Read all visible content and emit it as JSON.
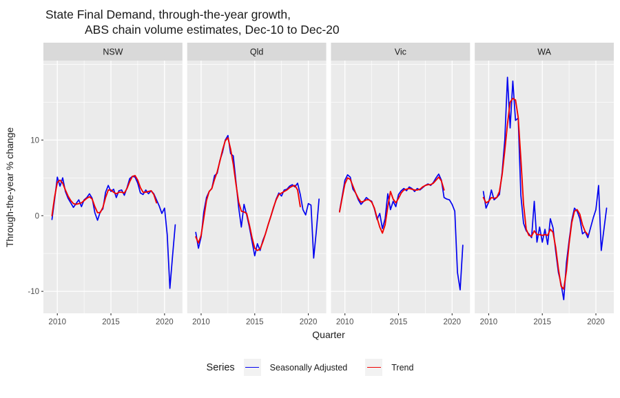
{
  "title": {
    "line1": "State Final Demand, through-the-year growth,",
    "line2": "ABS chain volume estimates, Dec-10 to Dec-20"
  },
  "axes": {
    "x_label": "Quarter",
    "y_label": "Through-the-year % change",
    "x_tick_labels": [
      "2010",
      "2015",
      "2020"
    ],
    "y_tick_labels": [
      "10",
      "0",
      "-10"
    ]
  },
  "legend": {
    "title": "Series",
    "entries": [
      {
        "label": "Seasonally Adjusted",
        "color": "#0000F0"
      },
      {
        "label": "Trend",
        "color": "#F00000"
      }
    ]
  },
  "theme": {
    "panel_bg": "#EBEBEB",
    "strip_bg": "#D9D9D9",
    "grid_color": "#FFFFFF",
    "tick_text_color": "#4d4d4d",
    "tick_mark_color": "#333333",
    "strip_text_color": "#1a1a1a",
    "sa_color": "#0000F0",
    "trend_color": "#F00000"
  },
  "chart_data": {
    "type": "line",
    "title": "State Final Demand, through-the-year growth, ABS chain volume estimates, Dec-10 to Dec-20",
    "xlabel": "Quarter",
    "ylabel": "Through-the-year % change",
    "legend_position": "bottom",
    "grid": true,
    "x_start_year": 2009.5,
    "x_step_years": 0.25,
    "x_ticks": [
      2010,
      2015,
      2020
    ],
    "x_minor": [
      2012.5,
      2017.5
    ],
    "y_ticks": [
      -10,
      0,
      10
    ],
    "y_minor": [
      -5,
      5,
      15,
      20
    ],
    "xlim": [
      2008.7,
      2021.67
    ],
    "ylim": [
      -12.9,
      20.5
    ],
    "series_names": [
      "Seasonally Adjusted",
      "Trend"
    ],
    "facets": [
      {
        "label": "NSW",
        "seasonally_adjusted": [
          -0.5,
          2.2,
          5.1,
          3.9,
          5.0,
          3.2,
          2.3,
          1.7,
          1.1,
          1.6,
          2.1,
          1.2,
          2.1,
          2.4,
          2.9,
          2.3,
          0.4,
          -0.6,
          0.5,
          0.9,
          3.1,
          4.0,
          3.2,
          3.5,
          2.4,
          3.3,
          3.4,
          2.7,
          3.7,
          4.9,
          5.2,
          5.1,
          4.3,
          3.0,
          2.8,
          3.4,
          2.9,
          3.3,
          2.9,
          2.1,
          1.3,
          0.3,
          1.0,
          -2.5,
          -9.6,
          -5.3,
          -1.2
        ],
        "trend": [
          0.0,
          2.5,
          4.4,
          4.7,
          4.3,
          3.4,
          2.6,
          2.0,
          1.6,
          1.5,
          1.6,
          1.7,
          2.0,
          2.3,
          2.5,
          2.2,
          1.2,
          0.4,
          0.4,
          1.1,
          2.4,
          3.4,
          3.4,
          3.1,
          2.9,
          3.1,
          3.1,
          3.0,
          3.6,
          4.5,
          5.2,
          5.3,
          4.7,
          3.7,
          3.1,
          3.1,
          3.2,
          3.3,
          2.8,
          1.7
        ]
      },
      {
        "label": "Qld",
        "seasonally_adjusted": [
          -2.2,
          -4.3,
          -2.8,
          0.5,
          2.4,
          3.2,
          3.6,
          5.3,
          5.6,
          7.3,
          8.4,
          10.0,
          10.6,
          8.2,
          7.9,
          4.5,
          1.1,
          -1.5,
          1.5,
          0.1,
          -1.5,
          -3.4,
          -5.3,
          -3.7,
          -4.6,
          -3.3,
          -2.4,
          -1.2,
          -0.1,
          1.0,
          2.2,
          3.0,
          2.6,
          3.4,
          3.5,
          3.9,
          4.1,
          3.8,
          4.3,
          2.8,
          0.8,
          0.1,
          1.6,
          1.4,
          -5.6,
          -2.0,
          2.2
        ],
        "trend": [
          -2.8,
          -3.6,
          -2.6,
          -0.3,
          2.0,
          3.2,
          3.6,
          4.8,
          5.8,
          7.2,
          8.7,
          9.9,
          10.3,
          8.8,
          6.8,
          4.2,
          1.8,
          0.6,
          0.5,
          0.3,
          -1.2,
          -2.9,
          -4.3,
          -4.6,
          -4.4,
          -3.5,
          -2.4,
          -1.2,
          -0.1,
          1.1,
          2.1,
          2.8,
          3.0,
          3.2,
          3.4,
          3.7,
          3.9,
          4.0,
          3.4,
          1.2
        ]
      },
      {
        "label": "Vic",
        "seasonally_adjusted": [
          0.6,
          2.6,
          4.7,
          5.4,
          5.1,
          3.5,
          3.0,
          2.1,
          1.5,
          1.9,
          2.4,
          2.1,
          1.9,
          0.9,
          -0.5,
          0.3,
          -1.7,
          -0.4,
          2.9,
          0.8,
          1.9,
          1.2,
          2.8,
          3.3,
          3.6,
          3.3,
          3.8,
          3.6,
          3.2,
          3.6,
          3.4,
          3.7,
          4.0,
          4.2,
          4.0,
          4.4,
          5.0,
          5.5,
          4.7,
          2.4,
          2.2,
          2.1,
          1.5,
          0.6,
          -7.5,
          -9.8,
          -3.9
        ],
        "trend": [
          0.5,
          2.4,
          4.2,
          5.0,
          4.8,
          3.9,
          3.0,
          2.3,
          1.8,
          1.9,
          2.1,
          2.1,
          1.8,
          1.0,
          -0.3,
          -1.5,
          -2.3,
          -1.2,
          1.2,
          3.2,
          2.2,
          1.7,
          2.3,
          3.0,
          3.4,
          3.5,
          3.6,
          3.5,
          3.4,
          3.4,
          3.5,
          3.8,
          4.0,
          4.1,
          4.1,
          4.3,
          4.7,
          5.1,
          4.6,
          3.4
        ]
      },
      {
        "label": "WA",
        "seasonally_adjusted": [
          3.2,
          1.0,
          1.8,
          3.4,
          2.1,
          2.4,
          2.8,
          5.7,
          10.0,
          18.3,
          11.6,
          17.8,
          12.6,
          12.9,
          2.7,
          -1.0,
          -2.0,
          -2.4,
          -2.9,
          1.9,
          -3.5,
          -1.5,
          -3.5,
          -1.8,
          -3.8,
          -0.4,
          -1.6,
          -4.7,
          -7.5,
          -9.0,
          -11.1,
          -6.2,
          -3.3,
          -0.6,
          1.0,
          0.6,
          -0.4,
          -2.4,
          -2.1,
          -2.9,
          -1.6,
          -0.3,
          0.8,
          4.0,
          -4.6,
          -1.8,
          1.0
        ],
        "trend": [
          2.4,
          1.7,
          1.9,
          2.4,
          2.3,
          2.4,
          3.2,
          5.4,
          8.6,
          12.1,
          15.0,
          15.5,
          15.3,
          13.0,
          7.5,
          1.5,
          -1.8,
          -2.6,
          -2.7,
          -2.0,
          -2.5,
          -2.5,
          -2.6,
          -2.5,
          -2.6,
          -1.8,
          -2.2,
          -4.2,
          -7.0,
          -9.3,
          -9.7,
          -7.3,
          -3.7,
          -0.9,
          0.6,
          0.8,
          0.2,
          -1.2,
          -2.1,
          -2.5
        ]
      }
    ]
  }
}
